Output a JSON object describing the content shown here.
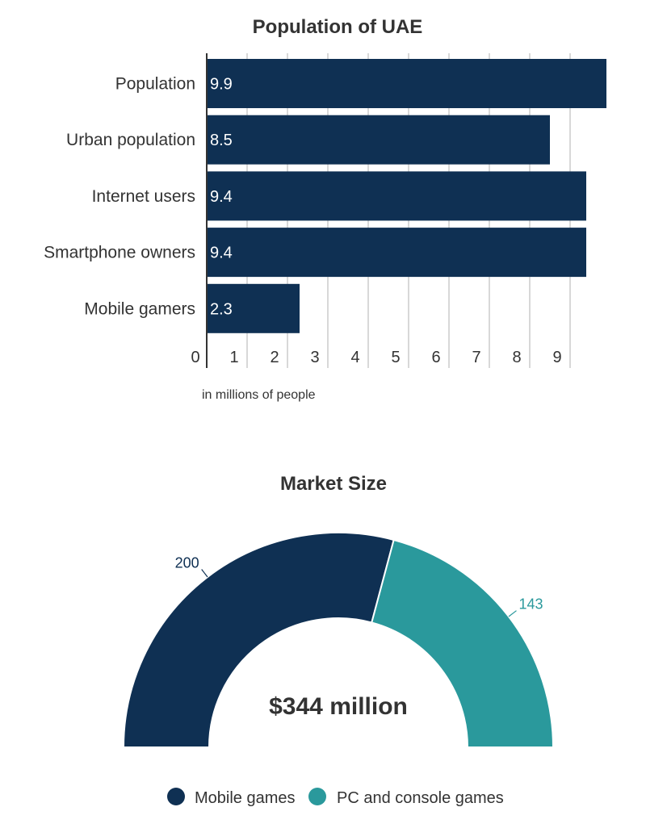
{
  "chart_data": [
    {
      "type": "bar",
      "orientation": "horizontal",
      "title": "Population of UAE",
      "categories": [
        "Population",
        "Urban population",
        "Internet users",
        "Smartphone owners",
        "Mobile gamers"
      ],
      "values": [
        9.9,
        8.5,
        9.4,
        9.4,
        2.3
      ],
      "data_labels": [
        "9.9",
        "8.5",
        "9.4",
        "9.4",
        "2.3"
      ],
      "x_ticks": [
        "0",
        "1",
        "2",
        "3",
        "4",
        "5",
        "6",
        "7",
        "8",
        "9"
      ],
      "xlim": [
        0,
        10
      ],
      "note": "in millions of people",
      "grid": true,
      "color": "#0f3053"
    },
    {
      "type": "pie",
      "variant": "half-donut",
      "title": "Market Size",
      "center_label": "$344 million",
      "series": [
        {
          "name": "Mobile games",
          "value": 200,
          "label": "200",
          "color": "#0f3053"
        },
        {
          "name": "PC and console games",
          "value": 143,
          "label": "143",
          "color": "#2a999c"
        }
      ],
      "legend_position": "bottom"
    }
  ]
}
